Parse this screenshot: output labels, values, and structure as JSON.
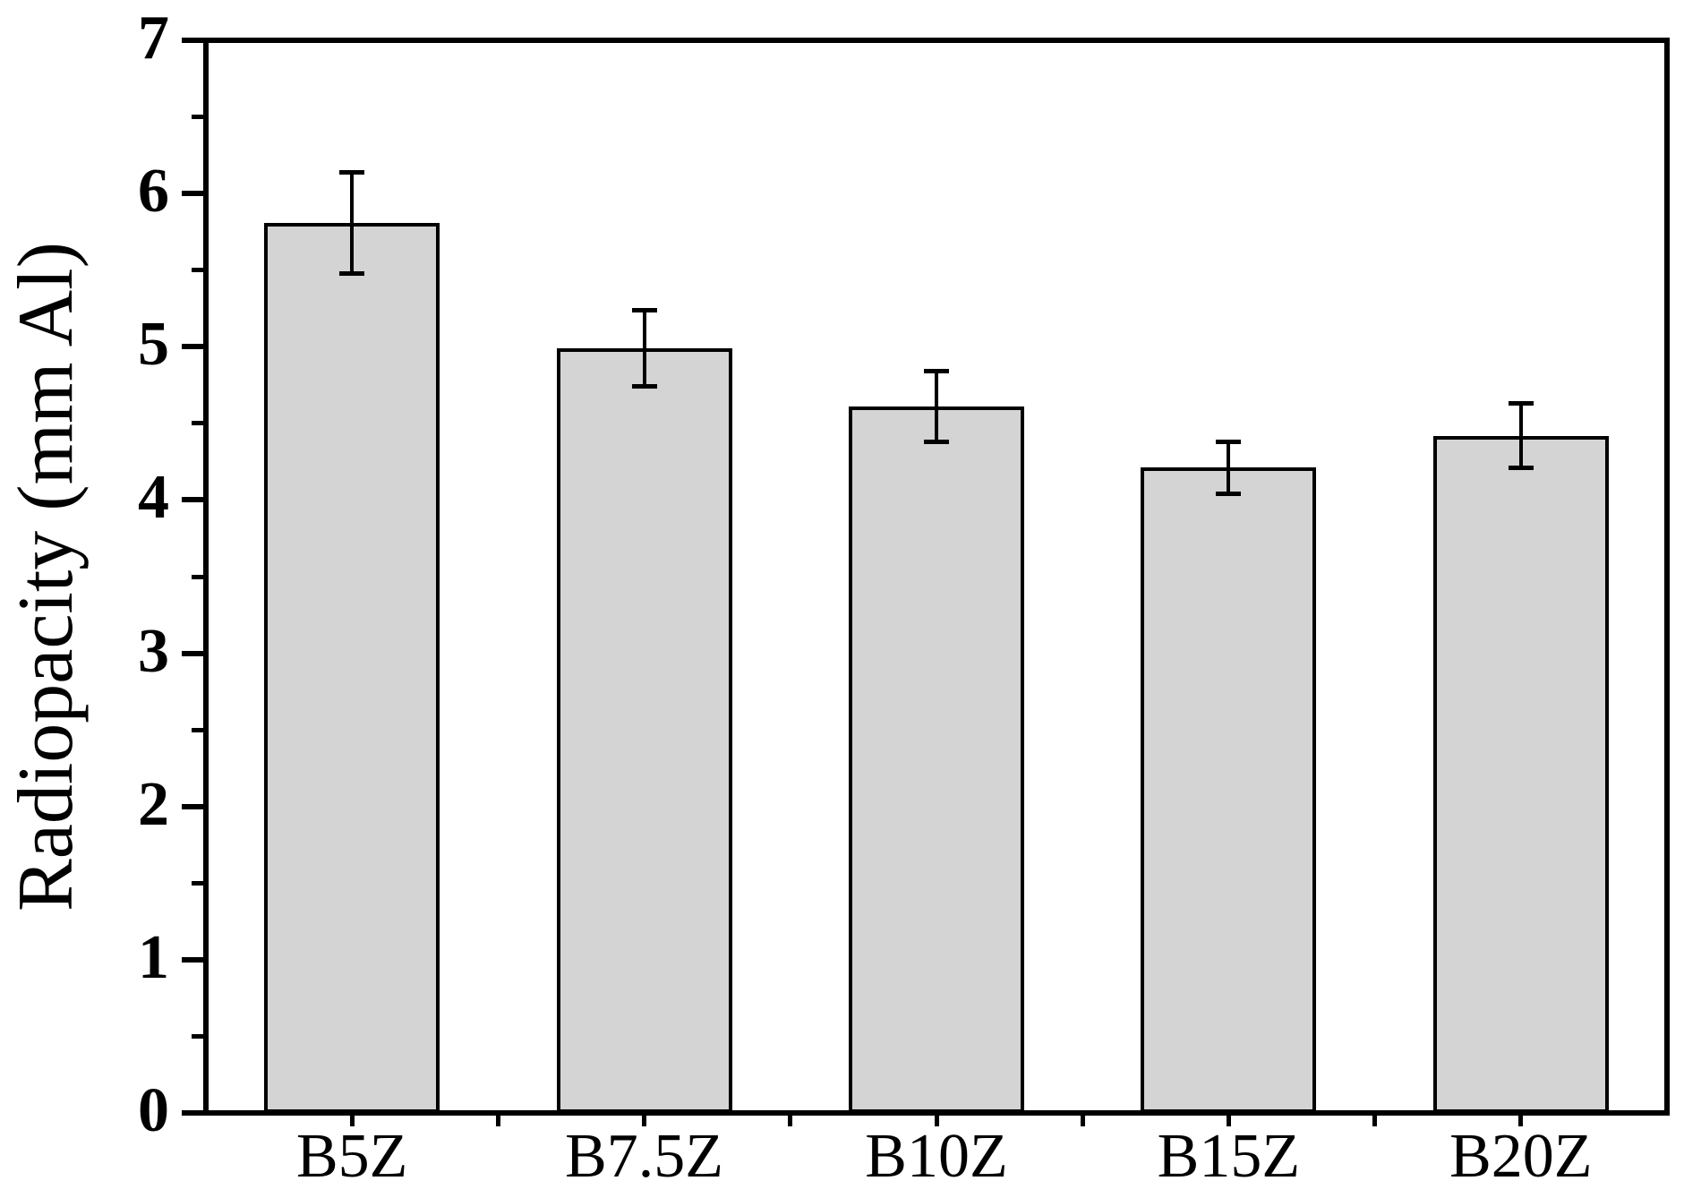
{
  "chart_data": {
    "type": "bar",
    "title": "",
    "xlabel": "",
    "ylabel": "Radiopacity (mm Al)",
    "ylim": [
      0,
      7
    ],
    "ytick_interval": 1,
    "minor_tick_interval": 0.5,
    "ytick_labels": [
      "0",
      "1",
      "2",
      "3",
      "4",
      "5",
      "6",
      "7"
    ],
    "categories": [
      "B5Z",
      "B7.5Z",
      "B10Z",
      "B15Z",
      "B20Z"
    ],
    "values": [
      5.81,
      4.99,
      4.61,
      4.21,
      4.42
    ],
    "errors": [
      0.33,
      0.25,
      0.23,
      0.17,
      0.21
    ],
    "error_bar_style": "both-directions-with-caps",
    "bar_fill_color": "#d4d4d4",
    "bar_border_color": "#000000",
    "axis_color": "#000000",
    "background_color": "#ffffff",
    "grid": false,
    "legend": null
  }
}
